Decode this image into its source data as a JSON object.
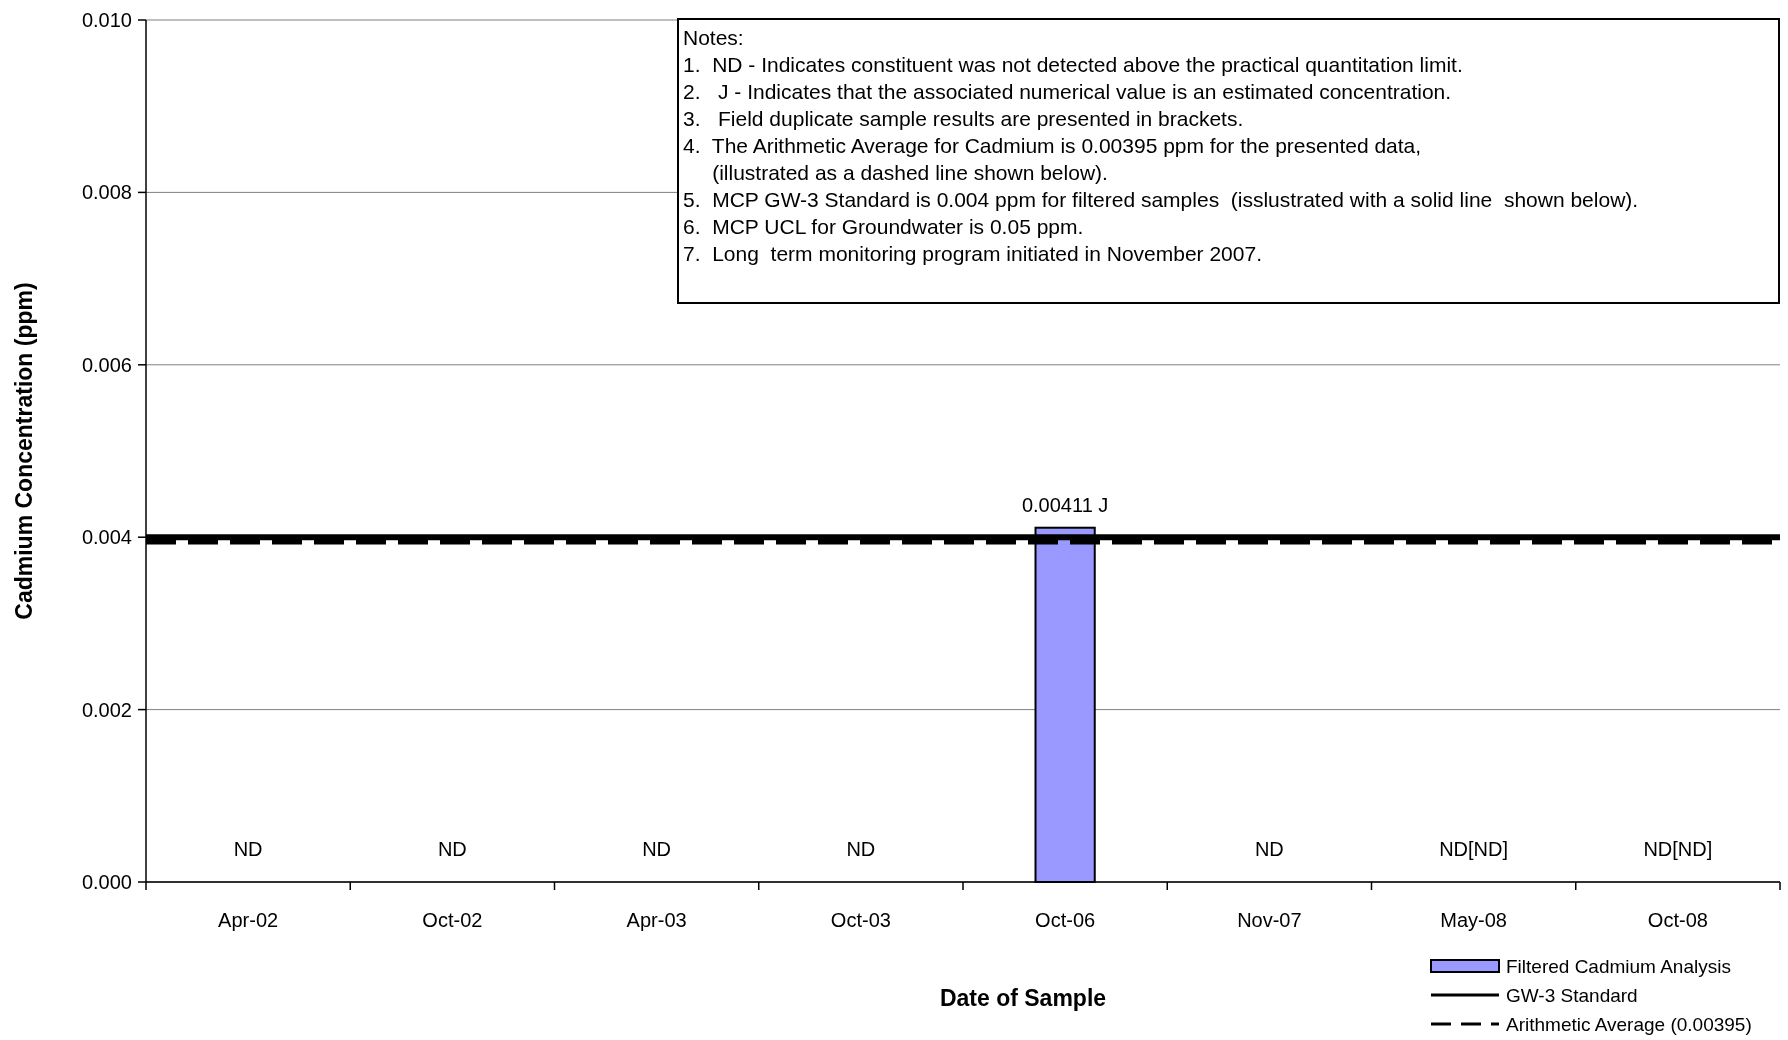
{
  "chart_data": {
    "type": "bar",
    "xlabel": "Date of Sample",
    "ylabel": "Cadmium Concentration (ppm)",
    "categories": [
      "Apr-02",
      "Oct-02",
      "Apr-03",
      "Oct-03",
      "Oct-06",
      "Nov-07",
      "May-08",
      "Oct-08"
    ],
    "series": [
      {
        "name": "Filtered Cadmium Analysis",
        "color": "#9999ff",
        "values": [
          null,
          null,
          null,
          null,
          0.00411,
          null,
          null,
          null
        ],
        "value_labels": [
          "ND",
          "ND",
          "ND",
          "ND",
          "0.00411 J",
          "ND",
          "ND[ND]",
          "ND[ND]"
        ]
      }
    ],
    "ylim": [
      0,
      0.01
    ],
    "yticks": [
      {
        "value": 0,
        "label": "0.000"
      },
      {
        "value": 0.002,
        "label": "0.002"
      },
      {
        "value": 0.004,
        "label": "0.004"
      },
      {
        "value": 0.006,
        "label": "0.006"
      },
      {
        "value": 0.008,
        "label": "0.008"
      },
      {
        "value": 0.01,
        "label": "0.010"
      }
    ],
    "grid": "y",
    "legend": "bottom right",
    "ref_lines": [
      {
        "axis": "y",
        "value": 0.004,
        "label": "GW-3 Standard",
        "color": "#000000",
        "line_style": "solid"
      },
      {
        "axis": "y",
        "value": 0.00395,
        "label": "Arithmetic Average (0.00395)",
        "color": "#000000",
        "line_style": "dashed"
      }
    ],
    "annotations": [
      "Notes:",
      "1.  ND - Indicates constituent was not detected above the practical quantitation limit.",
      "2.   J - Indicates that the associated numerical value is an estimated concentration.",
      "3.   Field duplicate sample results are presented in brackets.",
      "4.  The Arithmetic Average for Cadmium is 0.00395 ppm for the presented data,",
      "     (illustrated as a dashed line shown below).",
      "5.  MCP GW-3 Standard is 0.004 ppm for filtered samples  (isslustrated with a solid line  shown below).",
      "6.  MCP UCL for Groundwater is 0.05 ppm.",
      "7.  Long  term monitoring program initiated in November 2007."
    ]
  }
}
